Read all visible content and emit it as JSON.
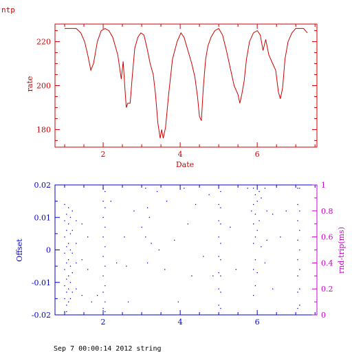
{
  "corner_label": "ntp",
  "footer_text": "Sep  7 00:00:14 2012 string",
  "colors": {
    "top": "#cc0000",
    "offset": "#0000cc",
    "rtt": "#cc00cc",
    "background": "#ffffff"
  },
  "chart_data": [
    {
      "type": "line",
      "title": "",
      "xlabel": "Date",
      "ylabel": "rate",
      "xlim": [
        0.75,
        7.55
      ],
      "ylim": [
        172,
        228
      ],
      "x_ticks": [
        "2",
        "4",
        "6"
      ],
      "y_ticks": [
        "180",
        "200",
        "220"
      ],
      "series": [
        {
          "x": [
            1.0,
            1.3,
            1.42,
            1.52,
            1.6,
            1.68,
            1.75,
            1.85,
            1.95,
            2.05,
            2.15,
            2.25,
            2.38,
            2.47,
            2.52,
            2.56,
            2.6,
            2.64,
            2.7,
            2.76,
            2.82,
            2.9,
            2.98,
            3.06,
            3.14,
            3.22,
            3.3,
            3.36,
            3.42,
            3.48,
            3.52,
            3.56,
            3.62,
            3.7,
            3.8,
            3.92,
            4.02,
            4.1,
            4.2,
            4.3,
            4.38,
            4.45,
            4.5,
            4.55,
            4.6,
            4.66,
            4.72,
            4.8,
            4.9,
            5.0,
            5.1,
            5.2,
            5.3,
            5.4,
            5.5,
            5.55,
            5.6,
            5.66,
            5.72,
            5.8,
            5.9,
            6.0,
            6.08,
            6.15,
            6.22,
            6.3,
            6.4,
            6.48,
            6.55,
            6.6,
            6.66,
            6.72,
            6.8,
            6.9,
            7.0,
            7.1,
            7.2,
            7.3
          ],
          "y": [
            226,
            226,
            224,
            220,
            214,
            207,
            210,
            220,
            225,
            226,
            225,
            222,
            214,
            203,
            211,
            200,
            190,
            192,
            192,
            205,
            217,
            222,
            224,
            223,
            217,
            210,
            205,
            196,
            183,
            176,
            180,
            176,
            181,
            196,
            212,
            220,
            224,
            222,
            216,
            210,
            204,
            195,
            186,
            184,
            199,
            212,
            218,
            222,
            225,
            226,
            223,
            216,
            208,
            200,
            196,
            192,
            196,
            202,
            212,
            220,
            224,
            225,
            223,
            216,
            221,
            214,
            210,
            207,
            197,
            194,
            199,
            212,
            220,
            224,
            226,
            226,
            226,
            224
          ]
        }
      ]
    },
    {
      "type": "scatter",
      "title": "",
      "xlabel": "",
      "ylabel": "Offset",
      "y2label": "rnd-trip(ms)",
      "xlim": [
        0.75,
        7.55
      ],
      "ylim": [
        -0.02,
        0.02
      ],
      "y2lim": [
        0,
        1
      ],
      "x_ticks": [
        "2",
        "4",
        "6"
      ],
      "y_ticks": [
        "0.02",
        "0.01",
        "0",
        "-0.01",
        "-0.02"
      ],
      "y2_ticks": [
        "1",
        "0.8",
        "0.6",
        "0.4",
        "0.2",
        "0"
      ],
      "series": [
        {
          "x": [
            1.0,
            1.0,
            1.0,
            1.0,
            1.0,
            1.0,
            1.0,
            1.0,
            1.05,
            1.05,
            1.05,
            1.05,
            1.05,
            1.05,
            1.05,
            1.05,
            1.1,
            1.1,
            1.1,
            1.1,
            1.1,
            1.1,
            1.1,
            1.15,
            1.15,
            1.15,
            1.15,
            1.15,
            1.15,
            1.2,
            1.2,
            1.2,
            1.2,
            1.2,
            1.3,
            1.3,
            1.3,
            1.3,
            1.45,
            1.45,
            1.45,
            1.6,
            1.6,
            1.7,
            1.85,
            2.0,
            2.0,
            2.0,
            2.0,
            2.0,
            2.0,
            2.0,
            2.0,
            2.05,
            2.05,
            2.05,
            2.05,
            2.05,
            2.05,
            2.05,
            2.05,
            2.2,
            2.35,
            2.55,
            2.6,
            2.65,
            2.8,
            3.0,
            3.1,
            3.1,
            3.15,
            3.15,
            3.2,
            3.25,
            3.4,
            3.45,
            3.6,
            3.65,
            3.85,
            3.95,
            4.1,
            4.2,
            4.3,
            4.4,
            4.6,
            4.75,
            4.85,
            5.0,
            5.0,
            5.0,
            5.0,
            5.0,
            5.0,
            5.0,
            5.0,
            5.05,
            5.05,
            5.05,
            5.05,
            5.05,
            5.05,
            5.05,
            5.05,
            5.3,
            5.45,
            5.75,
            5.85,
            5.9,
            5.9,
            5.9,
            5.9,
            5.9,
            5.9,
            5.95,
            5.95,
            5.95,
            5.95,
            5.95,
            6.0,
            6.0,
            6.0,
            6.05,
            6.05,
            6.1,
            6.1,
            6.2,
            6.2,
            6.25,
            6.25,
            6.4,
            6.4,
            6.6,
            6.75,
            7.05,
            7.05,
            7.05,
            7.05,
            7.05,
            7.05,
            7.05,
            7.05,
            7.1,
            7.1,
            7.1,
            7.1,
            7.1,
            7.1,
            7.1
          ],
          "y": [
            0.014,
            0.009,
            0.004,
            -0.001,
            -0.006,
            -0.011,
            -0.015,
            -0.019,
            0.011,
            0.006,
            0.001,
            -0.004,
            -0.009,
            -0.013,
            -0.017,
            -0.019,
            0.013,
            0.008,
            0.002,
            -0.003,
            -0.008,
            -0.012,
            -0.016,
            0.01,
            0.005,
            0.0,
            -0.005,
            -0.01,
            -0.015,
            0.012,
            0.006,
            -0.001,
            -0.007,
            -0.013,
            0.009,
            0.002,
            -0.004,
            -0.012,
            0.008,
            -0.003,
            -0.014,
            0.004,
            -0.006,
            -0.016,
            -0.014,
            0.019,
            0.015,
            0.01,
            0.004,
            -0.002,
            -0.008,
            -0.013,
            -0.018,
            0.018,
            0.013,
            0.007,
            0.001,
            -0.005,
            -0.011,
            -0.016,
            -0.019,
            0.015,
            -0.004,
            0.004,
            -0.005,
            -0.016,
            0.012,
            0.007,
            0.019,
            0.004,
            0.013,
            -0.004,
            0.01,
            0.002,
            0.018,
            0.0,
            -0.006,
            0.015,
            0.003,
            -0.016,
            0.019,
            0.008,
            -0.008,
            0.014,
            -0.002,
            0.017,
            -0.008,
            0.019,
            0.014,
            0.009,
            0.004,
            -0.002,
            -0.007,
            -0.012,
            -0.017,
            0.018,
            0.013,
            0.008,
            0.002,
            -0.003,
            -0.008,
            -0.013,
            -0.018,
            0.007,
            -0.006,
            0.019,
            0.012,
            0.019,
            0.014,
            0.008,
            0.002,
            -0.006,
            -0.014,
            0.017,
            0.011,
            0.004,
            -0.003,
            -0.011,
            0.015,
            0.006,
            -0.007,
            0.018,
            0.009,
            0.016,
            0.001,
            0.019,
            -0.004,
            0.012,
            0.003,
            0.011,
            -0.012,
            0.004,
            0.012,
            0.019,
            0.014,
            0.009,
            0.003,
            -0.003,
            -0.008,
            -0.013,
            -0.018,
            0.019,
            0.012,
            0.006,
            0.0,
            -0.006,
            -0.012,
            -0.017
          ]
        }
      ]
    }
  ]
}
